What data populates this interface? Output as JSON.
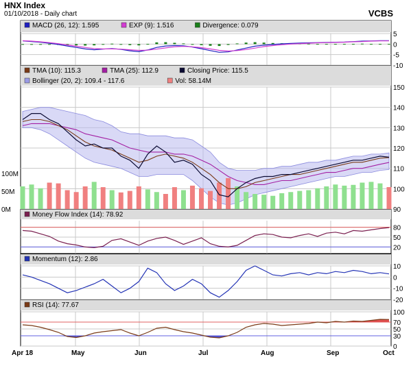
{
  "header": {
    "title": "HNX Index",
    "subtitle": "01/10/2018 - Daily chart",
    "brand": "VCBS"
  },
  "chart_data": [
    {
      "type": "line",
      "panel": "macd",
      "legend": [
        {
          "label": "MACD (26, 12): 1.595",
          "color": "#1f1fbf"
        },
        {
          "label": "EXP (9): 1.516",
          "color": "#d23cd2"
        },
        {
          "label": "Divergence: 0.079",
          "color": "#1a7f1a"
        }
      ],
      "ylim": [
        -10,
        5
      ],
      "yticks": [
        "5",
        "0",
        "-5",
        "-10"
      ],
      "series": [
        {
          "name": "MACD (26, 12)",
          "color": "#1f1fbf",
          "values": [
            1.5,
            1.2,
            0.9,
            0.4,
            -0.2,
            -0.9,
            -1.6,
            -2.3,
            -2.7,
            -2.4,
            -2.1,
            -2.5,
            -3.2,
            -3.6,
            -2.8,
            -1.6,
            -0.9,
            -0.7,
            -0.8,
            -1.4,
            -2.2,
            -3.1,
            -3.9,
            -3.7,
            -2.8,
            -1.9,
            -1.0,
            -0.5,
            -0.2,
            0.1,
            0.3,
            0.5,
            0.6,
            0.7,
            0.8,
            0.9,
            1.0,
            1.2,
            1.4,
            1.5,
            1.6,
            1.6
          ]
        },
        {
          "name": "EXP (9)",
          "color": "#d23cd2",
          "values": [
            1.6,
            1.4,
            1.1,
            0.7,
            0.2,
            -0.4,
            -1.0,
            -1.6,
            -2.1,
            -2.3,
            -2.3,
            -2.4,
            -2.7,
            -3.0,
            -2.9,
            -2.4,
            -1.8,
            -1.3,
            -1.1,
            -1.3,
            -1.7,
            -2.3,
            -3.0,
            -3.3,
            -3.1,
            -2.6,
            -1.9,
            -1.2,
            -0.7,
            -0.3,
            0.0,
            0.2,
            0.4,
            0.6,
            0.7,
            0.8,
            0.9,
            1.1,
            1.2,
            1.4,
            1.5,
            1.5
          ]
        },
        {
          "name": "Divergence",
          "color": "#1a7f1a",
          "values": [
            -0.1,
            -0.2,
            -0.2,
            -0.3,
            -0.4,
            -0.5,
            -0.6,
            -0.7,
            -0.6,
            -0.1,
            0.2,
            -0.1,
            -0.5,
            -0.6,
            0.1,
            0.8,
            0.9,
            0.6,
            0.3,
            -0.1,
            -0.5,
            -0.8,
            -0.9,
            -0.4,
            0.3,
            0.7,
            0.9,
            0.7,
            0.5,
            0.4,
            0.3,
            0.3,
            0.2,
            0.1,
            0.1,
            0.1,
            0.1,
            0.1,
            0.2,
            0.1,
            0.1,
            0.1
          ]
        }
      ]
    },
    {
      "type": "line",
      "panel": "price",
      "legend": [
        {
          "label": "TMA (10): 115.3",
          "color": "#7a3b17"
        },
        {
          "label": "TMA (25): 112.9",
          "color": "#a31fa3"
        },
        {
          "label": "Closing Price: 115.5",
          "color": "#0b0b33"
        },
        {
          "label": "Bollinger (20, 2): 109.4 - 117.6",
          "color": "#9b9be6"
        },
        {
          "label": "Vol: 58.14M",
          "color": "#f08080"
        }
      ],
      "ylim": [
        90,
        150
      ],
      "yticks": [
        "150",
        "140",
        "130",
        "120",
        "110",
        "100",
        "90"
      ],
      "vol_ticks": [
        "100M",
        "50M",
        "0M"
      ],
      "vol_max": 200,
      "series": [
        {
          "name": "Closing Price",
          "color": "#0b0b33",
          "values": [
            134,
            137,
            137,
            134,
            132,
            128,
            124,
            121,
            122,
            120,
            120,
            116,
            114,
            110,
            117,
            121,
            118,
            113,
            114,
            112,
            107,
            104,
            97,
            96,
            100,
            103,
            105,
            106,
            106,
            107,
            107,
            108,
            109,
            110,
            111,
            112,
            113,
            114,
            114,
            115,
            116,
            115.5
          ]
        },
        {
          "name": "TMA (10)",
          "color": "#7a3b17",
          "values": [
            133,
            134,
            134,
            133,
            131,
            129,
            126,
            123,
            121,
            120,
            119,
            117,
            115,
            113,
            114,
            116,
            117,
            116,
            115,
            113,
            110,
            107,
            103,
            100,
            100,
            101,
            103,
            104,
            105,
            106,
            107,
            107,
            108,
            109,
            110,
            111,
            112,
            113,
            113,
            114,
            115,
            115.3
          ]
        },
        {
          "name": "TMA (25)",
          "color": "#a31fa3",
          "values": [
            131,
            132,
            132,
            132,
            131,
            130,
            129,
            127,
            126,
            125,
            124,
            122,
            120,
            119,
            118,
            118,
            118,
            117,
            117,
            116,
            114,
            112,
            109,
            106,
            104,
            103,
            102,
            102,
            103,
            104,
            104,
            105,
            106,
            107,
            108,
            108,
            109,
            110,
            110,
            111,
            112,
            112.9
          ]
        },
        {
          "name": "Bollinger upper",
          "color": "#9b9be6",
          "values": [
            138,
            139,
            140,
            140,
            139,
            138,
            137,
            136,
            134,
            133,
            131,
            128,
            127,
            127,
            126,
            126,
            126,
            125,
            125,
            124,
            121,
            118,
            113,
            110,
            109,
            109,
            109,
            110,
            110,
            111,
            111,
            112,
            113,
            113,
            114,
            114,
            115,
            116,
            116,
            117,
            117,
            117.6
          ]
        },
        {
          "name": "Bollinger lower",
          "color": "#9b9be6",
          "values": [
            130,
            130,
            129,
            127,
            124,
            121,
            118,
            115,
            113,
            112,
            111,
            110,
            108,
            106,
            106,
            107,
            107,
            107,
            107,
            104,
            100,
            96,
            93,
            92,
            93,
            95,
            97,
            98,
            99,
            100,
            101,
            102,
            103,
            104,
            105,
            106,
            106,
            107,
            108,
            108,
            109,
            109.4
          ]
        },
        {
          "name": "Vol",
          "color": "#f08080",
          "values": [
            60,
            65,
            55,
            70,
            68,
            50,
            45,
            60,
            72,
            58,
            50,
            44,
            48,
            60,
            52,
            45,
            40,
            58,
            50,
            62,
            55,
            48,
            70,
            82,
            60,
            45,
            40,
            38,
            35,
            42,
            45,
            48,
            50,
            55,
            60,
            65,
            62,
            64,
            70,
            72,
            68,
            58.14
          ]
        }
      ]
    },
    {
      "type": "line",
      "panel": "mfi",
      "legend": [
        {
          "label": "Money Flow Index (14): 78.92",
          "color": "#7a1f4f"
        }
      ],
      "ylim": [
        0,
        100
      ],
      "yticks": [
        "80",
        "50",
        "20"
      ],
      "series": [
        {
          "name": "Money Flow Index (14)",
          "color": "#7a1f4f",
          "values": [
            70,
            68,
            60,
            52,
            38,
            30,
            26,
            20,
            18,
            22,
            40,
            45,
            35,
            25,
            38,
            46,
            50,
            40,
            28,
            38,
            48,
            30,
            22,
            20,
            25,
            40,
            55,
            60,
            58,
            50,
            48,
            55,
            60,
            52,
            62,
            65,
            60,
            70,
            68,
            72,
            76,
            78.92
          ]
        }
      ]
    },
    {
      "type": "line",
      "panel": "momentum",
      "legend": [
        {
          "label": "Momentum (12): 2.86",
          "color": "#2333b5"
        }
      ],
      "ylim": [
        -20,
        10
      ],
      "yticks": [
        "10",
        "0",
        "-10",
        "-20"
      ],
      "series": [
        {
          "name": "Momentum (12)",
          "color": "#2333b5",
          "values": [
            2,
            0,
            -3,
            -6,
            -10,
            -14,
            -12,
            -9,
            -6,
            -2,
            -8,
            -14,
            -10,
            -4,
            8,
            4,
            -6,
            -12,
            -8,
            -2,
            -6,
            -14,
            -18,
            -12,
            -4,
            6,
            10,
            6,
            2,
            1,
            3,
            4,
            2,
            4,
            3,
            5,
            4,
            6,
            5,
            3,
            4,
            2.86
          ]
        }
      ]
    },
    {
      "type": "line",
      "panel": "rsi",
      "legend": [
        {
          "label": "RSI (14): 77.67",
          "color": "#7a3b17"
        }
      ],
      "ylim": [
        0,
        100
      ],
      "yticks": [
        "100",
        "70",
        "50",
        "30",
        "0"
      ],
      "series": [
        {
          "name": "RSI (14)",
          "color": "#7a3b17",
          "values": [
            62,
            60,
            55,
            48,
            40,
            28,
            25,
            30,
            38,
            42,
            45,
            48,
            38,
            30,
            40,
            52,
            55,
            48,
            42,
            38,
            32,
            26,
            24,
            30,
            40,
            55,
            62,
            66,
            64,
            60,
            62,
            64,
            66,
            70,
            68,
            72,
            70,
            73,
            72,
            75,
            78,
            77.67
          ]
        }
      ],
      "x_ticks": [
        "Apr 18",
        "May",
        "Jun",
        "Jul",
        "Aug",
        "Sep",
        "Oct"
      ]
    }
  ]
}
